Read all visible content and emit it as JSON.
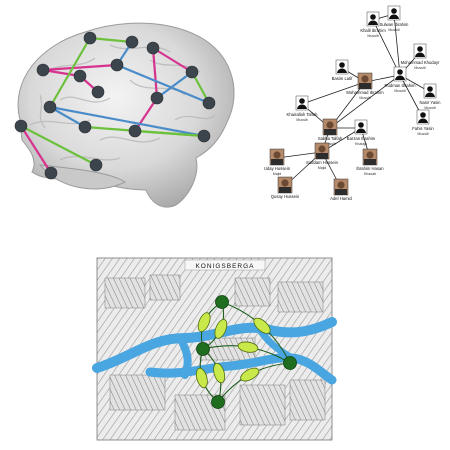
{
  "palette": {
    "edge_pink": "#d6338f",
    "edge_blue": "#4a8cc9",
    "edge_green": "#6cc13c",
    "node_dark": "#3c444c",
    "river": "#4aa6e0",
    "map_node": "#1f6e1f",
    "bridge": "#c9e84a"
  },
  "brain_network": {
    "nodes": [
      {
        "id": "b1"
      },
      {
        "id": "b2"
      },
      {
        "id": "b3"
      },
      {
        "id": "b4"
      },
      {
        "id": "b5"
      },
      {
        "id": "b6"
      },
      {
        "id": "b7"
      },
      {
        "id": "b8"
      },
      {
        "id": "b9"
      },
      {
        "id": "b10"
      },
      {
        "id": "b11"
      },
      {
        "id": "b12"
      },
      {
        "id": "b13"
      },
      {
        "id": "b14"
      },
      {
        "id": "b15"
      },
      {
        "id": "b16"
      },
      {
        "id": "b17"
      }
    ],
    "edges": [
      {
        "from": "b4",
        "to": "b5",
        "color": "pink"
      },
      {
        "from": "b4",
        "to": "b9",
        "color": "pink"
      },
      {
        "from": "b9",
        "to": "b14",
        "color": "pink"
      },
      {
        "from": "b3",
        "to": "b6",
        "color": "pink"
      },
      {
        "from": "b6",
        "to": "b7",
        "color": "pink"
      },
      {
        "from": "b7",
        "to": "b8",
        "color": "pink"
      },
      {
        "from": "b12",
        "to": "b16",
        "color": "pink"
      },
      {
        "from": "b2",
        "to": "b3",
        "color": "blue"
      },
      {
        "from": "b3",
        "to": "b10",
        "color": "blue"
      },
      {
        "from": "b5",
        "to": "b9",
        "color": "blue"
      },
      {
        "from": "b11",
        "to": "b15",
        "color": "blue"
      },
      {
        "from": "b11",
        "to": "b13",
        "color": "blue"
      },
      {
        "from": "b12",
        "to": "b17",
        "color": "green"
      },
      {
        "from": "b13",
        "to": "b15",
        "color": "green"
      },
      {
        "from": "b14",
        "to": "b15",
        "color": "green"
      },
      {
        "from": "b1",
        "to": "b11",
        "color": "green"
      },
      {
        "from": "b1",
        "to": "b2",
        "color": "green"
      },
      {
        "from": "b5",
        "to": "b10",
        "color": "green"
      }
    ]
  },
  "social_network": {
    "people": [
      {
        "id": "sulwan",
        "name": "Sulwan Ibrahim",
        "role": "Musslit",
        "photo": false
      },
      {
        "id": "khalil",
        "name": "Khalil Ibrahim",
        "role": "Musslit",
        "photo": false
      },
      {
        "id": "mohammad_k",
        "name": "Mohammad Khudayr",
        "role": "Musslit",
        "photo": false
      },
      {
        "id": "basim",
        "name": "Basim Latif",
        "role": "",
        "photo": false
      },
      {
        "id": "rudman",
        "name": "Rudman Ibrahim",
        "role": "Musslit",
        "photo": false
      },
      {
        "id": "mohammad_i",
        "name": "Mohammad Ibrahim",
        "role": "Musslit",
        "photo": true
      },
      {
        "id": "khairallah",
        "name": "Khairallah Talfah",
        "role": "Musslit",
        "photo": false
      },
      {
        "id": "nasir",
        "name": "Nasir Yasin",
        "role": "Musslit",
        "photo": false
      },
      {
        "id": "fahis",
        "name": "Fahis Yasin",
        "role": "Musslit",
        "photo": false
      },
      {
        "id": "sabha",
        "name": "Sabha Talfah",
        "role": "Musslit",
        "photo": true
      },
      {
        "id": "barzan",
        "name": "Barzan Ibrahim",
        "role": "Khalaja",
        "photo": false
      },
      {
        "id": "saddam",
        "name": "Saddam Hussein",
        "role": "Majid",
        "photo": true
      },
      {
        "id": "uday",
        "name": "Uday Hussein",
        "role": "Majid",
        "photo": true
      },
      {
        "id": "ibrahim_h",
        "name": "Ibrahim Hasan",
        "role": "Khasab",
        "photo": true
      },
      {
        "id": "qusay",
        "name": "Qusay Hussein",
        "role": "",
        "photo": true
      },
      {
        "id": "adel",
        "name": "Adel Hamid",
        "role": "",
        "photo": true
      }
    ],
    "links": [
      [
        "sulwan",
        "khalil"
      ],
      [
        "khalil",
        "rudman"
      ],
      [
        "sulwan",
        "rudman"
      ],
      [
        "mohammad_k",
        "rudman"
      ],
      [
        "basim",
        "mohammad_i"
      ],
      [
        "rudman",
        "mohammad_i"
      ],
      [
        "rudman",
        "nasir"
      ],
      [
        "rudman",
        "fahis"
      ],
      [
        "mohammad_i",
        "khairallah"
      ],
      [
        "mohammad_i",
        "sabha"
      ],
      [
        "khairallah",
        "sabha"
      ],
      [
        "sabha",
        "barzan"
      ],
      [
        "sabha",
        "saddam"
      ],
      [
        "barzan",
        "saddam"
      ],
      [
        "barzan",
        "ibrahim_h"
      ],
      [
        "saddam",
        "uday"
      ],
      [
        "saddam",
        "qusay"
      ],
      [
        "saddam",
        "adel"
      ],
      [
        "rudman",
        "sabha"
      ]
    ]
  },
  "konigsberg": {
    "map_title": "KONIGSBERGA",
    "nodes": [
      {
        "id": "north"
      },
      {
        "id": "island"
      },
      {
        "id": "east"
      },
      {
        "id": "south"
      }
    ],
    "bridges": [
      {
        "from": "north",
        "to": "island"
      },
      {
        "from": "north",
        "to": "island"
      },
      {
        "from": "south",
        "to": "island"
      },
      {
        "from": "south",
        "to": "island"
      },
      {
        "from": "north",
        "to": "east"
      },
      {
        "from": "island",
        "to": "east"
      },
      {
        "from": "south",
        "to": "east"
      }
    ]
  }
}
